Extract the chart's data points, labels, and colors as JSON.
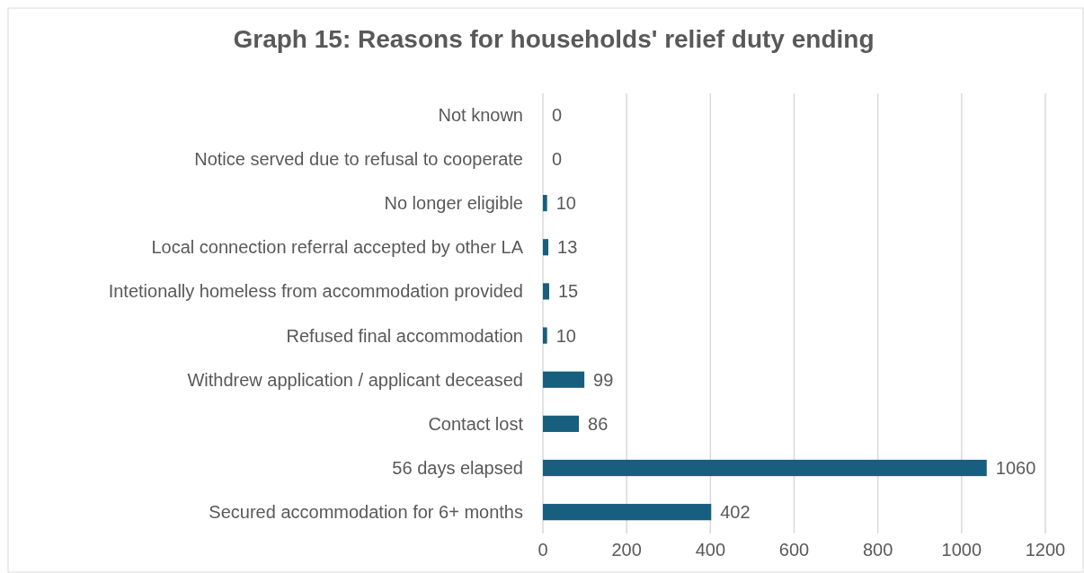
{
  "chart_data": {
    "type": "bar",
    "orientation": "horizontal",
    "title": "Graph 15: Reasons for households' relief duty ending",
    "categories": [
      "Not known",
      "Notice served due to refusal to cooperate",
      "No longer eligible",
      "Local connection referral accepted by other LA",
      "Intetionally homeless from accommodation provided",
      "Refused final accommodation",
      "Withdrew application / applicant deceased",
      "Contact lost",
      "56 days elapsed",
      "Secured accommodation for 6+ months"
    ],
    "values": [
      0,
      0,
      10,
      13,
      15,
      10,
      99,
      86,
      1060,
      402
    ],
    "color": "#175e7f",
    "xlim": [
      0,
      1200
    ],
    "xticks": [
      0,
      200,
      400,
      600,
      800,
      1000,
      1200
    ],
    "grid": "x",
    "data_labels": true
  }
}
